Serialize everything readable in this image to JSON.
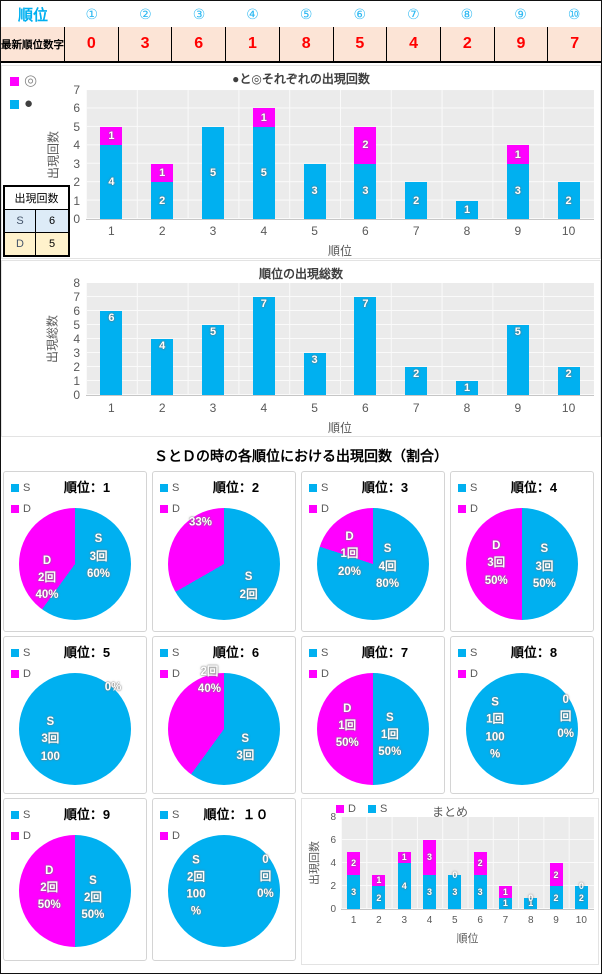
{
  "header": {
    "rank_label": "順位",
    "circled_numbers": [
      "①",
      "②",
      "③",
      "④",
      "⑤",
      "⑥",
      "⑦",
      "⑧",
      "⑨",
      "⑩"
    ],
    "latest_label": "最新順位数字",
    "latest_values": [
      "0",
      "3",
      "6",
      "1",
      "8",
      "5",
      "4",
      "2",
      "9",
      "7"
    ]
  },
  "colors": {
    "s_cyan": "#00B0F0",
    "d_magenta": "#FF00FF",
    "cell_peach": "#FCE4D6",
    "value_red": "#FF0000",
    "s_row_blue": "#DDEBF7",
    "d_row_cream": "#FFF2CC",
    "axis_gray": "#595959"
  },
  "side_table": {
    "header": "出現回数",
    "rows": [
      {
        "key": "S",
        "value": "6"
      },
      {
        "key": "D",
        "value": "5"
      }
    ]
  },
  "section_title": "ＳとＤの時の各順位における出現回数（割合）",
  "chart_data": [
    {
      "name": "marks_stacked_bar",
      "type": "bar",
      "title": "●と◎それぞれの出現回数",
      "categories": [
        "1",
        "2",
        "3",
        "4",
        "5",
        "6",
        "7",
        "8",
        "9",
        "10"
      ],
      "series": [
        {
          "name": "●",
          "color": "#00B0F0",
          "values": [
            4,
            2,
            5,
            5,
            3,
            3,
            2,
            1,
            3,
            2
          ]
        },
        {
          "name": "◎",
          "color": "#FF00FF",
          "values": [
            1,
            1,
            0,
            1,
            0,
            2,
            0,
            0,
            1,
            0
          ]
        }
      ],
      "legend": [
        {
          "label": "◎"
        },
        {
          "label": "●"
        }
      ],
      "legend_position": "left",
      "xlabel": "順位",
      "ylabel": "出現回数",
      "ylim": [
        0,
        7
      ],
      "ytick_step": 1,
      "grid": true,
      "stacked": true
    },
    {
      "name": "rank_totals_bar",
      "type": "bar",
      "title": "順位の出現総数",
      "categories": [
        "1",
        "2",
        "3",
        "4",
        "5",
        "6",
        "7",
        "8",
        "9",
        "10"
      ],
      "values": [
        6,
        4,
        5,
        7,
        3,
        7,
        2,
        1,
        5,
        2
      ],
      "xlabel": "順位",
      "ylabel": "出現総数",
      "ylim": [
        0,
        8
      ],
      "ytick_step": 1,
      "grid": true
    },
    {
      "name": "summary_stacked_bar",
      "type": "bar",
      "title": "まとめ",
      "categories": [
        "1",
        "2",
        "3",
        "4",
        "5",
        "6",
        "7",
        "8",
        "9",
        "10"
      ],
      "series": [
        {
          "name": "S",
          "color": "#00B0F0",
          "values": [
            3,
            2,
            4,
            3,
            3,
            3,
            1,
            1,
            2,
            2
          ]
        },
        {
          "name": "D",
          "color": "#FF00FF",
          "values": [
            2,
            1,
            1,
            3,
            0,
            2,
            1,
            0,
            2,
            0
          ]
        }
      ],
      "legend": [
        {
          "label": "D"
        },
        {
          "label": "S"
        }
      ],
      "legend_position": "top",
      "xlabel": "順位",
      "ylabel": "出現回数",
      "ylim": [
        0,
        8
      ],
      "ytick_step": 2,
      "grid": true,
      "stacked": true
    },
    {
      "name": "rank_pies",
      "type": "pie",
      "legend": {
        "s": "S",
        "d": "D"
      },
      "pies": [
        {
          "title": "順位：1",
          "s_count": 3,
          "d_count": 2,
          "s_pct": 60,
          "d_pct": 40,
          "labels": {
            "s": "S\n3回\n60%",
            "d": "D\n2回\n40%"
          }
        },
        {
          "title": "順位：2",
          "s_count": 2,
          "d_count": 1,
          "s_pct": 66.7,
          "d_pct": 33,
          "labels": {
            "s": "S\n2回",
            "d": "33%"
          }
        },
        {
          "title": "順位：3",
          "s_count": 4,
          "d_count": 1,
          "s_pct": 80,
          "d_pct": 20,
          "labels": {
            "s": "S\n4回\n80%",
            "d": "D\n1回\n20%"
          }
        },
        {
          "title": "順位：4",
          "s_count": 3,
          "d_count": 3,
          "s_pct": 50,
          "d_pct": 50,
          "labels": {
            "s": "S\n3回\n50%",
            "d": "D\n3回\n50%"
          }
        },
        {
          "title": "順位：5",
          "s_count": 3,
          "d_count": 0,
          "s_pct": 100,
          "d_pct": 0,
          "labels": {
            "s": "S\n3回\n100",
            "zero": "0%"
          }
        },
        {
          "title": "順位：6",
          "s_count": 3,
          "d_count": 2,
          "s_pct": 60,
          "d_pct": 40,
          "labels": {
            "s": "S\n3回",
            "d": "2回\n40%"
          }
        },
        {
          "title": "順位：7",
          "s_count": 1,
          "d_count": 1,
          "s_pct": 50,
          "d_pct": 50,
          "labels": {
            "s": "S\n1回\n50%",
            "d": "D\n1回\n50%"
          }
        },
        {
          "title": "順位：8",
          "s_count": 1,
          "d_count": 0,
          "s_pct": 100,
          "d_pct": 0,
          "labels": {
            "s": "S\n1回\n100\n%",
            "zero": "0回\n0%"
          }
        },
        {
          "title": "順位：9",
          "s_count": 2,
          "d_count": 2,
          "s_pct": 50,
          "d_pct": 50,
          "labels": {
            "s": "S\n2回\n50%",
            "d": "D\n2回\n50%"
          }
        },
        {
          "title": "順位：１０",
          "s_count": 2,
          "d_count": 0,
          "s_pct": 100,
          "d_pct": 0,
          "labels": {
            "s": "S\n2回\n100\n%",
            "zero": "0回\n0%"
          }
        }
      ]
    }
  ]
}
